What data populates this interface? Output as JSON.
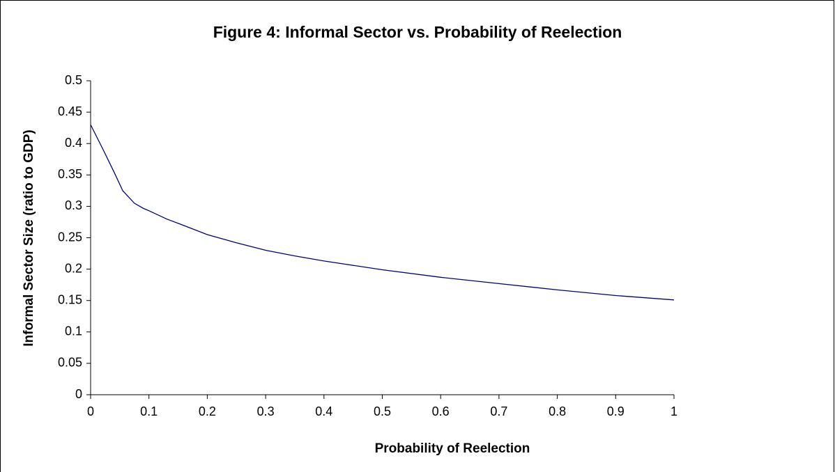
{
  "chart_data": {
    "type": "line",
    "title": "Figure 4: Informal Sector vs. Probability of Reelection",
    "x_label": "Probability of Reelection",
    "y_label": "Informal Sector Size (ratio to GDP)",
    "x": [
      0,
      0.02,
      0.04,
      0.055,
      0.075,
      0.09,
      0.1,
      0.13,
      0.15,
      0.2,
      0.25,
      0.3,
      0.35,
      0.4,
      0.5,
      0.6,
      0.7,
      0.8,
      0.9,
      1
    ],
    "values": [
      0.43,
      0.393,
      0.355,
      0.325,
      0.305,
      0.297,
      0.293,
      0.28,
      0.273,
      0.255,
      0.242,
      0.23,
      0.221,
      0.213,
      0.199,
      0.187,
      0.177,
      0.167,
      0.158,
      0.151
    ],
    "color": "#000080",
    "xlim": [
      0,
      1
    ],
    "xticks": [
      0,
      0.1,
      0.2,
      0.3,
      0.4,
      0.5,
      0.6,
      0.7,
      0.8,
      0.9,
      1
    ],
    "ylim": [
      0,
      0.5
    ],
    "yticks": [
      0,
      0.05,
      0.1,
      0.15,
      0.2,
      0.25,
      0.3,
      0.35,
      0.4,
      0.45,
      0.5
    ],
    "grid": false
  }
}
